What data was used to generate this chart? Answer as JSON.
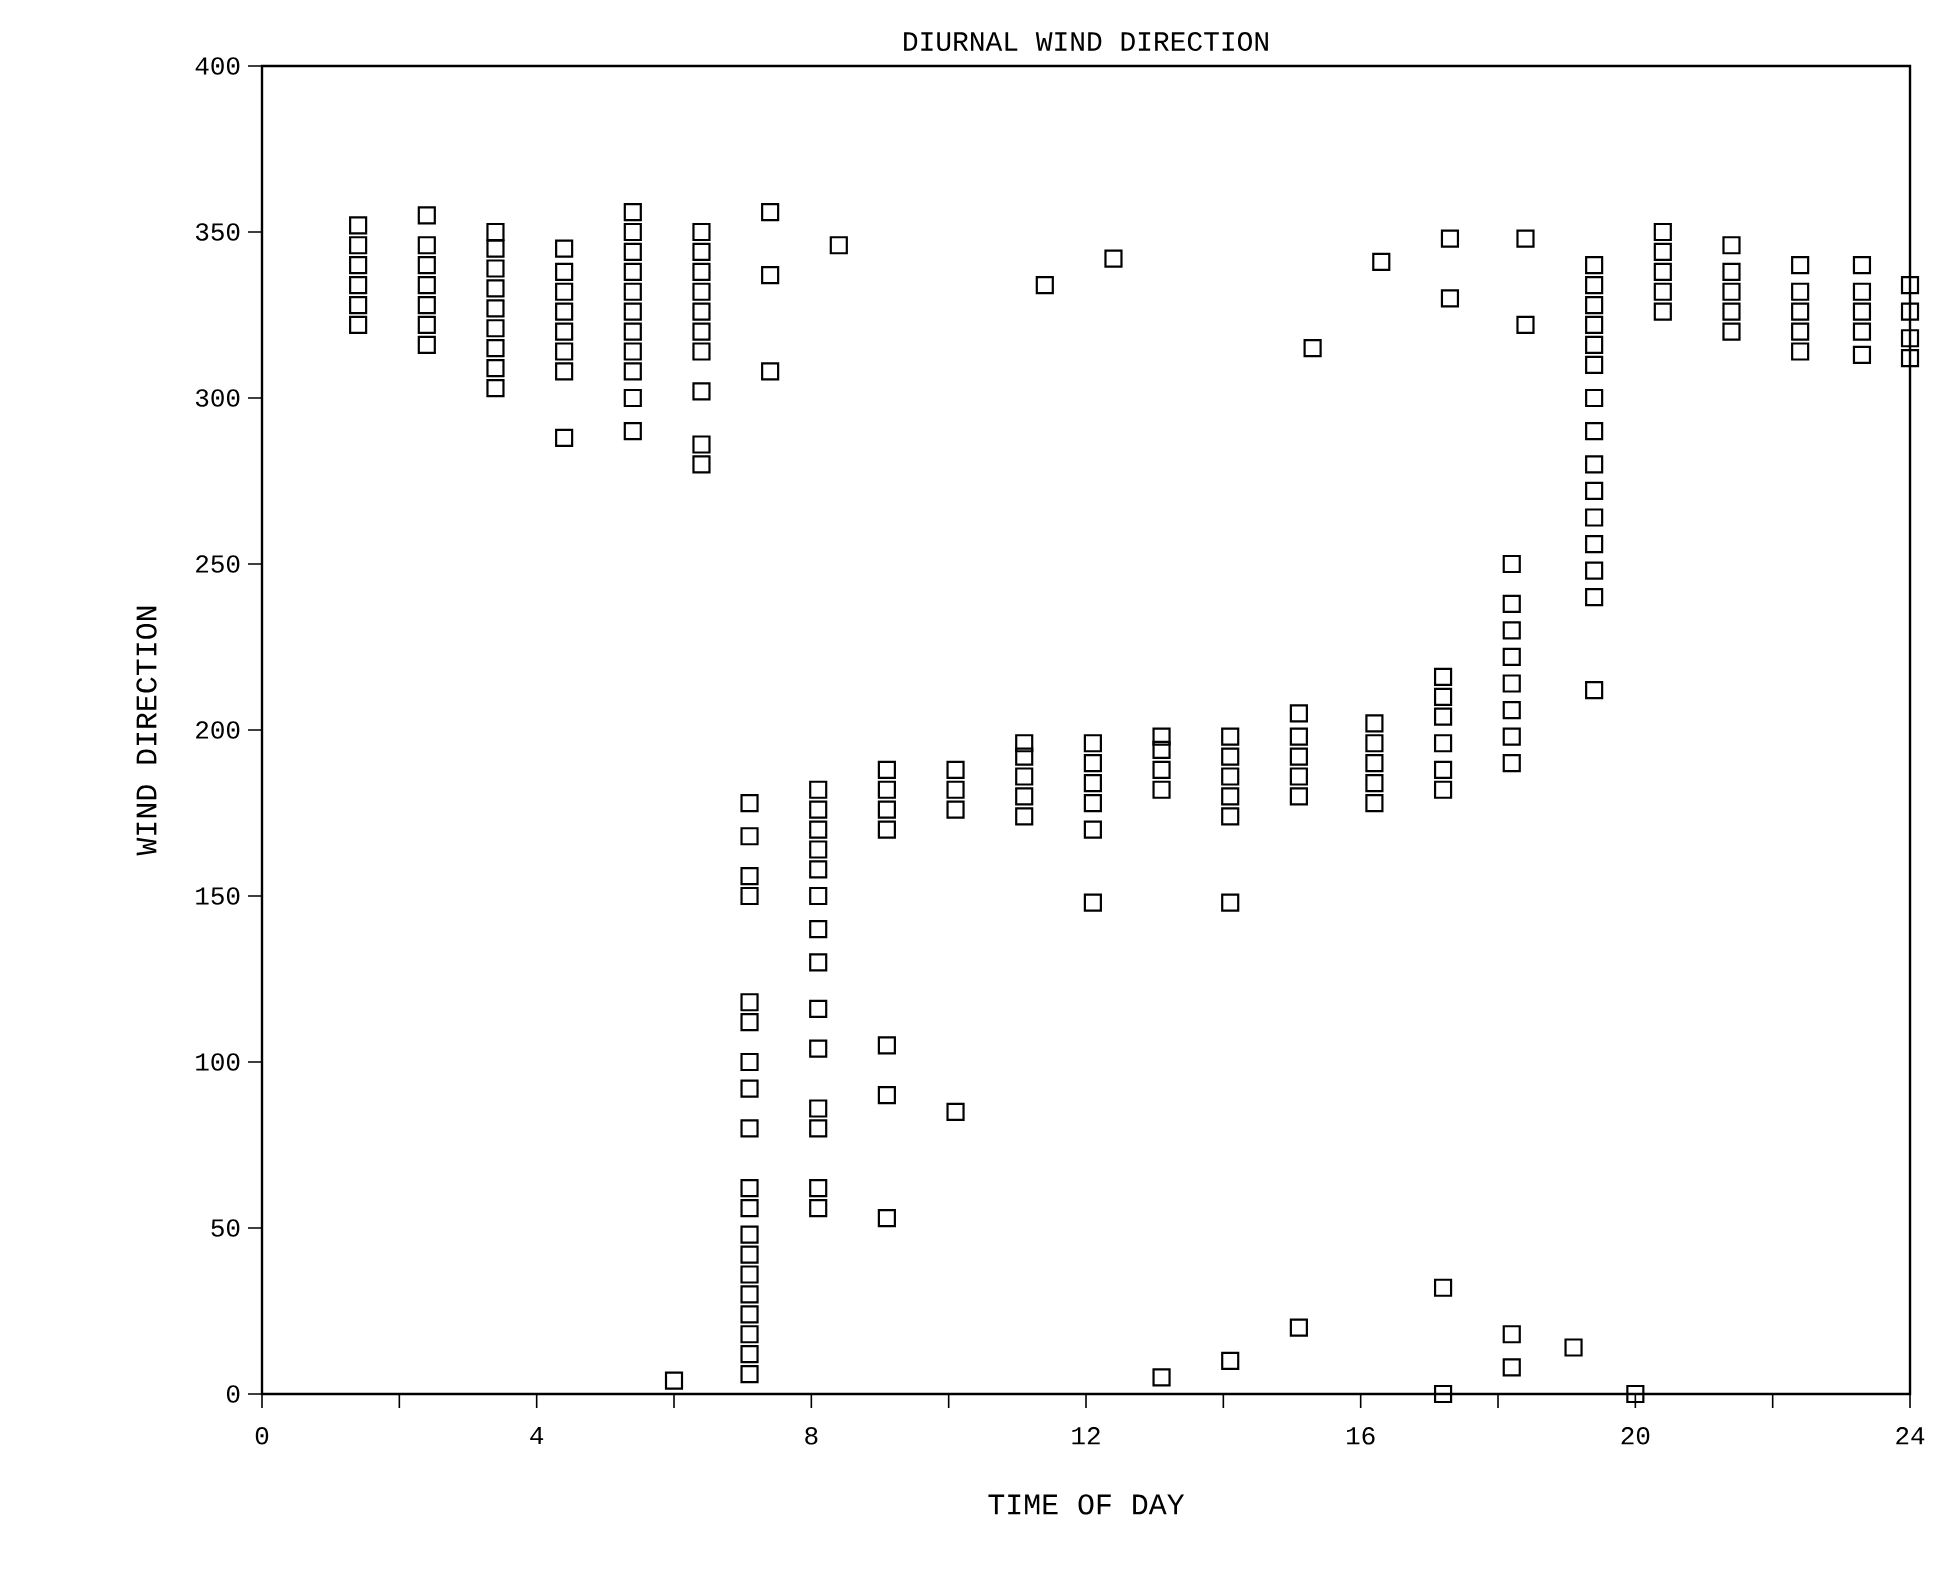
{
  "chart_data": {
    "type": "scatter",
    "title": "DIURNAL WIND DIRECTION",
    "xlabel": "TIME OF DAY",
    "ylabel": "WIND DIRECTION",
    "marker": "square",
    "xlim": [
      0,
      24
    ],
    "ylim": [
      0,
      400
    ],
    "xticks": [
      0,
      {
        "value": 2,
        "label": null
      },
      4,
      {
        "value": 6,
        "label": null
      },
      8,
      {
        "value": 10,
        "label": null
      },
      12,
      {
        "value": 14,
        "label": null
      },
      16,
      {
        "value": 18,
        "label": null
      },
      20,
      {
        "value": 22,
        "label": null
      },
      24
    ],
    "yticks": [
      0,
      50,
      100,
      150,
      200,
      250,
      300,
      350,
      400
    ],
    "series": [
      {
        "color": "#000000",
        "x": [
          1.4,
          1.4,
          1.4,
          1.4,
          1.4,
          1.4,
          2.4,
          2.4,
          2.4,
          2.4,
          2.4,
          2.4,
          2.4,
          3.4,
          3.4,
          3.4,
          3.4,
          3.4,
          3.4,
          3.4,
          3.4,
          3.4,
          4.4,
          4.4,
          4.4,
          4.4,
          4.4,
          4.4,
          4.4,
          4.4,
          5.4,
          5.4,
          5.4,
          5.4,
          5.4,
          5.4,
          5.4,
          5.4,
          5.4,
          5.4,
          5.4,
          6.4,
          6.4,
          6.4,
          6.4,
          6.4,
          6.4,
          6.4,
          6.4,
          6.4,
          6.4,
          7.4,
          7.4,
          7.4,
          8.4,
          11.4,
          12.4,
          15.3,
          16.3,
          17.3,
          17.3,
          18.4,
          18.4,
          19.4,
          19.4,
          19.4,
          19.4,
          19.4,
          19.4,
          19.4,
          19.4,
          19.4,
          19.4,
          19.4,
          19.4,
          19.4,
          19.4,
          19.4,
          20.4,
          20.4,
          20.4,
          20.4,
          20.4,
          21.4,
          21.4,
          21.4,
          21.4,
          21.4,
          22.4,
          22.4,
          22.4,
          22.4,
          22.4,
          23.3,
          23.3,
          23.3,
          23.3,
          23.3,
          24,
          24,
          24,
          24,
          6.0,
          7.1,
          7.1,
          7.1,
          7.1,
          7.1,
          7.1,
          7.1,
          7.1,
          7.1,
          7.1,
          7.1,
          7.1,
          7.1,
          7.1,
          7.1,
          7.1,
          7.1,
          7.1,
          7.1,
          8.1,
          8.1,
          8.1,
          8.1,
          8.1,
          8.1,
          8.1,
          8.1,
          8.1,
          8.1,
          8.1,
          8.1,
          8.1,
          8.1,
          9.1,
          9.1,
          9.1,
          9.1,
          9.1,
          9.1,
          9.1,
          10.1,
          10.1,
          10.1,
          10.1,
          11.1,
          11.1,
          11.1,
          11.1,
          11.1,
          12.1,
          12.1,
          12.1,
          12.1,
          12.1,
          12.1,
          13.1,
          13.1,
          13.1,
          13.1,
          13.1,
          14.1,
          14.1,
          14.1,
          14.1,
          14.1,
          14.1,
          14.1,
          15.1,
          15.1,
          15.1,
          15.1,
          15.1,
          15.1,
          16.2,
          16.2,
          16.2,
          16.2,
          16.2,
          17.2,
          17.2,
          17.2,
          17.2,
          17.2,
          17.2,
          17.2,
          17.2,
          18.2,
          18.2,
          18.2,
          18.2,
          18.2,
          18.2,
          18.2,
          18.2,
          18.2,
          18.2,
          19.1,
          20.0
        ],
        "values": [
          322,
          328,
          334,
          340,
          346,
          352,
          316,
          322,
          328,
          334,
          340,
          346,
          355,
          303,
          309,
          315,
          321,
          327,
          333,
          339,
          345,
          350,
          288,
          308,
          314,
          320,
          326,
          332,
          338,
          345,
          290,
          300,
          308,
          314,
          320,
          326,
          332,
          338,
          344,
          350,
          356,
          280,
          286,
          302,
          314,
          320,
          326,
          332,
          338,
          344,
          350,
          308,
          337,
          356,
          346,
          334,
          342,
          315,
          341,
          348,
          330,
          348,
          322,
          212,
          240,
          248,
          256,
          264,
          272,
          280,
          290,
          300,
          310,
          316,
          322,
          328,
          334,
          340,
          326,
          332,
          338,
          344,
          350,
          320,
          326,
          332,
          338,
          346,
          314,
          320,
          326,
          332,
          340,
          313,
          320,
          326,
          332,
          340,
          312,
          318,
          326,
          334,
          4,
          6,
          12,
          18,
          24,
          30,
          36,
          42,
          48,
          56,
          62,
          80,
          92,
          100,
          112,
          118,
          150,
          156,
          168,
          178,
          56,
          62,
          80,
          86,
          104,
          116,
          130,
          140,
          150,
          158,
          164,
          170,
          176,
          182,
          53,
          90,
          105,
          170,
          176,
          182,
          188,
          85,
          176,
          182,
          188,
          174,
          180,
          186,
          192,
          196,
          148,
          170,
          178,
          184,
          190,
          196,
          5,
          182,
          188,
          194,
          198,
          10,
          148,
          174,
          180,
          186,
          192,
          198,
          20,
          180,
          186,
          192,
          198,
          205,
          178,
          184,
          190,
          196,
          202,
          0,
          32,
          182,
          188,
          196,
          204,
          210,
          216,
          8,
          18,
          190,
          198,
          206,
          214,
          222,
          230,
          238,
          250,
          14,
          0
        ]
      }
    ]
  }
}
